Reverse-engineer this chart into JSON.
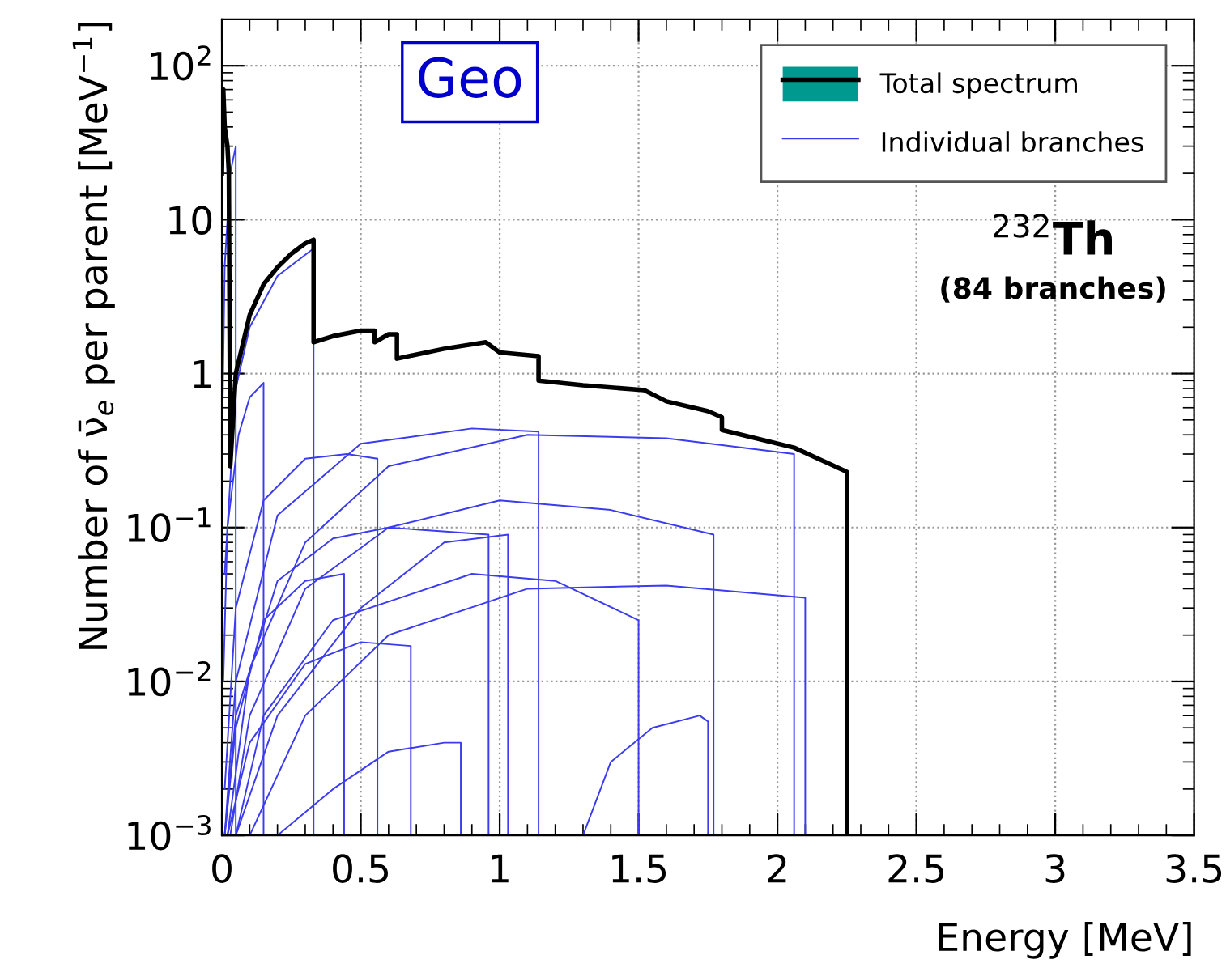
{
  "chart_data": {
    "type": "line",
    "xlabel": "Energy [MeV]",
    "ylabel": "Number of ν̄$_{e}$ per parent [MeV$^{−1}$]",
    "annotations": [
      "Geo",
      "$^{232}$Th",
      "(84 branches)"
    ],
    "xlim": [
      0,
      3.5
    ],
    "xticks": [
      0,
      0.5,
      1,
      1.5,
      2,
      2.5,
      3,
      3.5
    ],
    "ylim": [
      0.001,
      200
    ],
    "yticks": [
      {
        "value": 0.001,
        "label": "10$^{−3}$"
      },
      {
        "value": 0.01,
        "label": "10$^{−2}$"
      },
      {
        "value": 0.1,
        "label": "10$^{−1}$"
      },
      1,
      10,
      {
        "value": 100,
        "label": "10$^{2}$"
      }
    ],
    "log": "y",
    "grid": true,
    "legend": "top right",
    "series": [
      {
        "name": "Individual branches",
        "color": "#3b3bf0",
        "x": [
          0.01,
          0.05,
          0.1,
          0.2,
          0.33,
          0.33
        ],
        "values": [
          0.05,
          0.8,
          2.0,
          4.3,
          6.5,
          0.001
        ]
      },
      {
        "color": "#3b3bf0",
        "x": [
          0.02,
          0.1,
          0.3,
          0.6,
          1.1,
          1.6,
          2.06,
          2.06
        ],
        "values": [
          0.001,
          0.012,
          0.08,
          0.25,
          0.4,
          0.38,
          0.3,
          0.001
        ]
      },
      {
        "color": "#3b3bf0",
        "x": [
          0.01,
          0.05,
          0.2,
          0.5,
          0.9,
          1.14,
          1.14
        ],
        "values": [
          0.001,
          0.01,
          0.12,
          0.35,
          0.44,
          0.42,
          0.001
        ]
      },
      {
        "color": "#3b3bf0",
        "x": [
          0.01,
          0.05,
          0.15,
          0.3,
          0.45,
          0.56,
          0.56
        ],
        "values": [
          0.002,
          0.03,
          0.15,
          0.28,
          0.3,
          0.28,
          0.001
        ]
      },
      {
        "color": "#3b3bf0",
        "x": [
          0.03,
          0.1,
          0.3,
          0.6,
          1.0,
          1.4,
          1.77,
          1.77
        ],
        "values": [
          0.001,
          0.006,
          0.04,
          0.1,
          0.15,
          0.13,
          0.09,
          0.001
        ]
      },
      {
        "color": "#3b3bf0",
        "x": [
          0.01,
          0.05,
          0.2,
          0.4,
          0.6,
          0.96,
          0.96
        ],
        "values": [
          0.001,
          0.006,
          0.045,
          0.085,
          0.1,
          0.09,
          0.001
        ]
      },
      {
        "color": "#3b3bf0",
        "x": [
          0.05,
          0.15,
          0.4,
          0.9,
          1.2,
          1.5,
          1.5
        ],
        "values": [
          0.001,
          0.006,
          0.025,
          0.05,
          0.045,
          0.025,
          0.001
        ]
      },
      {
        "color": "#3b3bf0",
        "x": [
          0.1,
          0.3,
          0.6,
          1.1,
          1.6,
          2.1,
          2.1
        ],
        "values": [
          0.001,
          0.006,
          0.02,
          0.04,
          0.042,
          0.035,
          0.001
        ]
      },
      {
        "color": "#3b3bf0",
        "x": [
          1.3,
          1.4,
          1.55,
          1.72,
          1.75,
          1.75
        ],
        "values": [
          0.001,
          0.003,
          0.005,
          0.006,
          0.0055,
          0.001
        ]
      },
      {
        "color": "#3b3bf0",
        "x": [
          0.02,
          0.1,
          0.3,
          0.5,
          0.68,
          0.68
        ],
        "values": [
          0.001,
          0.004,
          0.013,
          0.018,
          0.017,
          0.001
        ]
      },
      {
        "color": "#3b3bf0",
        "x": [
          0.005,
          0.02,
          0.06,
          0.1,
          0.15,
          0.15
        ],
        "values": [
          0.01,
          0.1,
          0.4,
          0.7,
          0.87,
          0.001
        ]
      },
      {
        "color": "#3b3bf0",
        "x": [
          0.002,
          0.01,
          0.03,
          0.05,
          0.05
        ],
        "values": [
          0.5,
          5,
          20,
          30,
          0.001
        ]
      },
      {
        "color": "#3b3bf0",
        "x": [
          0.2,
          0.4,
          0.6,
          0.8,
          0.86,
          0.86
        ],
        "values": [
          0.001,
          0.002,
          0.0035,
          0.004,
          0.004,
          0.001
        ]
      },
      {
        "color": "#3b3bf0",
        "x": [
          0.01,
          0.05,
          0.15,
          0.3,
          0.44,
          0.44
        ],
        "values": [
          0.001,
          0.005,
          0.025,
          0.045,
          0.05,
          0.001
        ]
      },
      {
        "color": "#3b3bf0",
        "x": [
          0.05,
          0.2,
          0.5,
          0.8,
          1.03,
          1.03
        ],
        "values": [
          0.001,
          0.006,
          0.03,
          0.08,
          0.09,
          0.001
        ]
      },
      {
        "name": "Total spectrum",
        "color": "#000000",
        "x": [
          0,
          0.005,
          0.01,
          0.02,
          0.025,
          0.03,
          0.05,
          0.1,
          0.15,
          0.2,
          0.25,
          0.3,
          0.33,
          0.33,
          0.4,
          0.5,
          0.55,
          0.55,
          0.6,
          0.63,
          0.63,
          0.8,
          0.95,
          1.0,
          1.14,
          1.14,
          1.3,
          1.52,
          1.6,
          1.75,
          1.8,
          1.8,
          2.06,
          2.25,
          2.25
        ],
        "values": [
          20,
          70,
          40,
          30,
          20,
          0.25,
          1.0,
          2.4,
          3.8,
          4.9,
          6.0,
          7.0,
          7.4,
          1.6,
          1.75,
          1.9,
          1.9,
          1.6,
          1.8,
          1.8,
          1.25,
          1.45,
          1.6,
          1.37,
          1.3,
          0.9,
          0.84,
          0.78,
          0.66,
          0.57,
          0.52,
          0.43,
          0.33,
          0.23,
          0.001
        ]
      }
    ]
  }
}
